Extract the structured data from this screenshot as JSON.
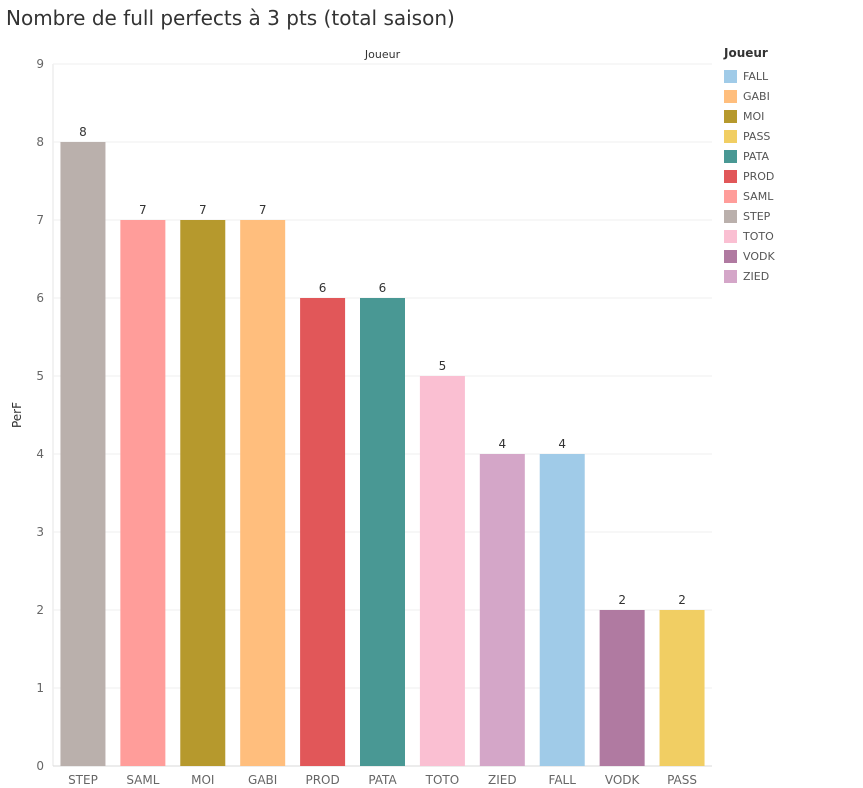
{
  "chart_data": {
    "type": "bar",
    "title": "Nombre de full perfects à 3 pts (total saison)",
    "column_header": "Joueur",
    "xlabel": "",
    "ylabel": "PerF",
    "ylim": [
      0,
      9
    ],
    "yticks": [
      0,
      1,
      2,
      3,
      4,
      5,
      6,
      7,
      8,
      9
    ],
    "categories": [
      "STEP",
      "SAML",
      "MOI",
      "GABI",
      "PROD",
      "PATA",
      "TOTO",
      "ZIED",
      "FALL",
      "VODK",
      "PASS"
    ],
    "values": [
      8,
      7,
      7,
      7,
      6,
      6,
      5,
      4,
      4,
      2,
      2
    ],
    "colors": {
      "FALL": "#A0CBE8",
      "GABI": "#FFBE7D",
      "MOI": "#B6992D",
      "PASS": "#F1CE63",
      "PATA": "#499894",
      "PROD": "#E15759",
      "SAML": "#FF9D9A",
      "STEP": "#BAB0AC",
      "TOTO": "#FABFD2",
      "VODK": "#B07AA1",
      "ZIED": "#D4A6C8"
    },
    "legend": {
      "title": "Joueur",
      "position": "right",
      "entries": [
        "FALL",
        "GABI",
        "MOI",
        "PASS",
        "PATA",
        "PROD",
        "SAML",
        "STEP",
        "TOTO",
        "VODK",
        "ZIED"
      ]
    },
    "grid": true
  }
}
